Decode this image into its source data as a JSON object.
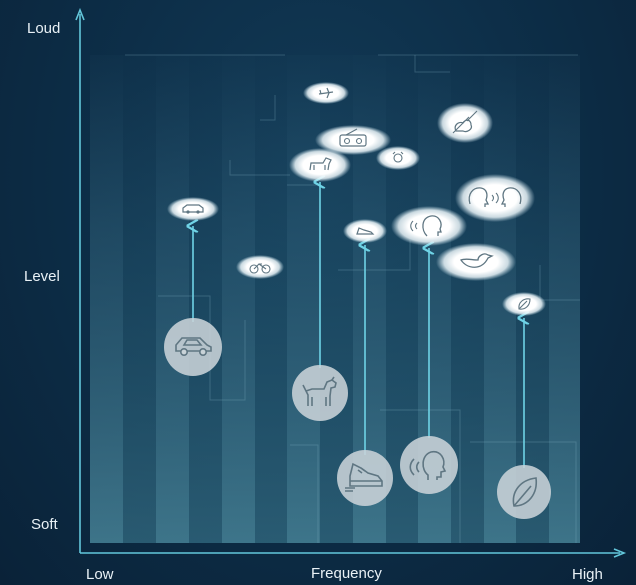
{
  "y_axis": {
    "top_label": "Loud",
    "mid_label": "Level",
    "bottom_label": "Soft"
  },
  "x_axis": {
    "left_label": "Low",
    "center_label": "Frequency",
    "right_label": "High"
  },
  "colors": {
    "axis": "#63c7db",
    "arrow": "#6fd3e6",
    "bubble": "#ffffff",
    "circle": "#c9d3d8",
    "icon_stroke": "#5f7682"
  },
  "sources": [
    {
      "name": "car",
      "icon": "car-icon"
    },
    {
      "name": "dog",
      "icon": "dog-icon"
    },
    {
      "name": "footsteps",
      "icon": "shoe-icon"
    },
    {
      "name": "voice",
      "icon": "talking-head-icon"
    },
    {
      "name": "leaves",
      "icon": "leaf-icon"
    }
  ],
  "bubbles": [
    {
      "icon": "airplane-icon"
    },
    {
      "icon": "radio-icon"
    },
    {
      "icon": "dog-icon"
    },
    {
      "icon": "alarm-clock-icon"
    },
    {
      "icon": "violin-icon"
    },
    {
      "icon": "conversation-icon"
    },
    {
      "icon": "car-icon"
    },
    {
      "icon": "shoe-icon"
    },
    {
      "icon": "talking-head-icon"
    },
    {
      "icon": "bird-icon"
    },
    {
      "icon": "bicycle-icon"
    },
    {
      "icon": "leaf-icon"
    }
  ]
}
